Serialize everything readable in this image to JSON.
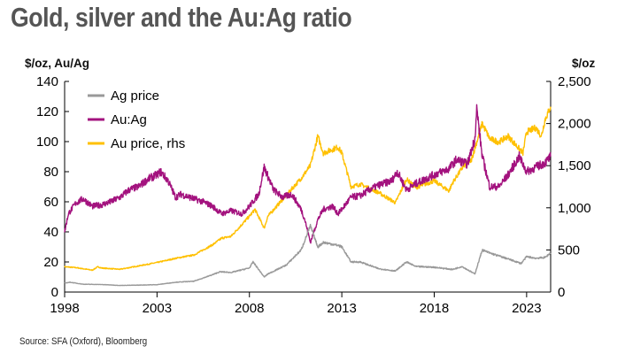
{
  "title": "Gold, silver and the Au:Ag ratio",
  "source": "Source: SFA (Oxford), Bloomberg",
  "chart_data": {
    "type": "line",
    "title": "Gold, silver and the Au:Ag ratio",
    "y_left_label": "$/oz, Au/Ag",
    "y_right_label": "$/oz",
    "x_range": [
      1998,
      2024.3
    ],
    "y_left_range": [
      0,
      140
    ],
    "y_right_range": [
      0,
      2500
    ],
    "x_ticks": [
      {
        "value": 1998,
        "label": "1998"
      },
      {
        "value": 2003,
        "label": "2003"
      },
      {
        "value": 2008,
        "label": "2008"
      },
      {
        "value": 2013,
        "label": "2013"
      },
      {
        "value": 2018,
        "label": "2018"
      },
      {
        "value": 2023,
        "label": "2023"
      }
    ],
    "y_left_ticks": [
      {
        "value": 0,
        "label": "0"
      },
      {
        "value": 20,
        "label": "20"
      },
      {
        "value": 40,
        "label": "40"
      },
      {
        "value": 60,
        "label": "60"
      },
      {
        "value": 80,
        "label": "80"
      },
      {
        "value": 100,
        "label": "100"
      },
      {
        "value": 120,
        "label": "120"
      },
      {
        "value": 140,
        "label": "140"
      }
    ],
    "y_right_ticks": [
      {
        "value": 0,
        "label": "0"
      },
      {
        "value": 500,
        "label": "500"
      },
      {
        "value": 1000,
        "label": "1,000"
      },
      {
        "value": 1500,
        "label": "1,500"
      },
      {
        "value": 2000,
        "label": "2,000"
      },
      {
        "value": 2500,
        "label": "2,500"
      }
    ],
    "legend_position": "top-left",
    "series": [
      {
        "name": "Ag price",
        "axis": "left",
        "color": "#999999",
        "points": [
          [
            1998,
            6
          ],
          [
            1998.3,
            6.5
          ],
          [
            1999,
            5.2
          ],
          [
            2000,
            5
          ],
          [
            2001,
            4.4
          ],
          [
            2002,
            4.6
          ],
          [
            2003,
            4.9
          ],
          [
            2004,
            6.5
          ],
          [
            2005,
            7.2
          ],
          [
            2006,
            11.5
          ],
          [
            2006.4,
            13.5
          ],
          [
            2007,
            13
          ],
          [
            2008,
            16
          ],
          [
            2008.2,
            20
          ],
          [
            2008.8,
            10
          ],
          [
            2009,
            12
          ],
          [
            2010,
            18
          ],
          [
            2010.8,
            28
          ],
          [
            2011.3,
            44
          ],
          [
            2011.7,
            30
          ],
          [
            2012,
            33
          ],
          [
            2012.8,
            31
          ],
          [
            2013,
            30
          ],
          [
            2013.5,
            20
          ],
          [
            2014,
            20
          ],
          [
            2015,
            15.5
          ],
          [
            2015.9,
            14
          ],
          [
            2016.5,
            20
          ],
          [
            2017,
            17
          ],
          [
            2018,
            16.5
          ],
          [
            2019,
            15
          ],
          [
            2019.5,
            17
          ],
          [
            2020.2,
            12
          ],
          [
            2020.6,
            28
          ],
          [
            2021,
            26
          ],
          [
            2022,
            22
          ],
          [
            2022.7,
            19
          ],
          [
            2023,
            23.5
          ],
          [
            2023.5,
            22.5
          ],
          [
            2024,
            23
          ],
          [
            2024.3,
            26
          ]
        ]
      },
      {
        "name": "Au:Ag",
        "axis": "left",
        "color": "#a3127e",
        "points": [
          [
            1998,
            40
          ],
          [
            1998.2,
            52
          ],
          [
            1998.6,
            59
          ],
          [
            1999,
            62
          ],
          [
            1999.5,
            57
          ],
          [
            2000,
            58
          ],
          [
            2000.5,
            60
          ],
          [
            2001,
            63
          ],
          [
            2001.5,
            68
          ],
          [
            2002,
            70
          ],
          [
            2002.5,
            75
          ],
          [
            2003,
            78
          ],
          [
            2003.2,
            80
          ],
          [
            2003.6,
            74
          ],
          [
            2004,
            63
          ],
          [
            2004.3,
            65
          ],
          [
            2005,
            62
          ],
          [
            2005.5,
            60
          ],
          [
            2006,
            57
          ],
          [
            2006.5,
            52
          ],
          [
            2007,
            54
          ],
          [
            2007.6,
            52
          ],
          [
            2008,
            57
          ],
          [
            2008.5,
            65
          ],
          [
            2008.8,
            83
          ],
          [
            2009.3,
            68
          ],
          [
            2009.8,
            63
          ],
          [
            2010.3,
            65
          ],
          [
            2010.8,
            55
          ],
          [
            2011,
            48
          ],
          [
            2011.3,
            33
          ],
          [
            2011.7,
            48
          ],
          [
            2012,
            55
          ],
          [
            2012.5,
            57
          ],
          [
            2012.8,
            52
          ],
          [
            2013,
            55
          ],
          [
            2013.5,
            63
          ],
          [
            2014,
            64
          ],
          [
            2014.5,
            68
          ],
          [
            2015,
            71
          ],
          [
            2015.7,
            74
          ],
          [
            2016,
            80
          ],
          [
            2016.5,
            68
          ],
          [
            2017,
            72
          ],
          [
            2018,
            78
          ],
          [
            2018.8,
            82
          ],
          [
            2019.2,
            88
          ],
          [
            2019.8,
            85
          ],
          [
            2020.2,
            102
          ],
          [
            2020.3,
            122
          ],
          [
            2020.6,
            90
          ],
          [
            2021,
            70
          ],
          [
            2021.5,
            70
          ],
          [
            2022,
            78
          ],
          [
            2022.6,
            90
          ],
          [
            2023,
            80
          ],
          [
            2023.5,
            83
          ],
          [
            2024,
            86
          ],
          [
            2024.3,
            90
          ]
        ]
      },
      {
        "name": "Au price, rhs",
        "axis": "right",
        "color": "#ffc000",
        "points": [
          [
            1998,
            300
          ],
          [
            1998.6,
            290
          ],
          [
            1999.5,
            260
          ],
          [
            1999.8,
            300
          ],
          [
            2000,
            285
          ],
          [
            2001,
            270
          ],
          [
            2002,
            310
          ],
          [
            2003,
            350
          ],
          [
            2004,
            400
          ],
          [
            2005,
            440
          ],
          [
            2006,
            560
          ],
          [
            2006.5,
            640
          ],
          [
            2007,
            660
          ],
          [
            2008,
            900
          ],
          [
            2008.3,
            980
          ],
          [
            2008.8,
            760
          ],
          [
            2009,
            900
          ],
          [
            2010,
            1150
          ],
          [
            2010.8,
            1350
          ],
          [
            2011.3,
            1500
          ],
          [
            2011.7,
            1850
          ],
          [
            2012,
            1650
          ],
          [
            2012.8,
            1720
          ],
          [
            2013,
            1650
          ],
          [
            2013.5,
            1250
          ],
          [
            2014,
            1280
          ],
          [
            2015,
            1180
          ],
          [
            2015.9,
            1060
          ],
          [
            2016.5,
            1340
          ],
          [
            2017,
            1240
          ],
          [
            2018,
            1320
          ],
          [
            2018.8,
            1200
          ],
          [
            2019,
            1300
          ],
          [
            2019.6,
            1500
          ],
          [
            2020,
            1560
          ],
          [
            2020.6,
            2000
          ],
          [
            2021,
            1820
          ],
          [
            2021.5,
            1780
          ],
          [
            2022,
            1850
          ],
          [
            2022.8,
            1650
          ],
          [
            2023,
            1900
          ],
          [
            2023.5,
            1950
          ],
          [
            2023.8,
            1850
          ],
          [
            2024,
            2050
          ],
          [
            2024.3,
            2200
          ]
        ]
      }
    ]
  }
}
